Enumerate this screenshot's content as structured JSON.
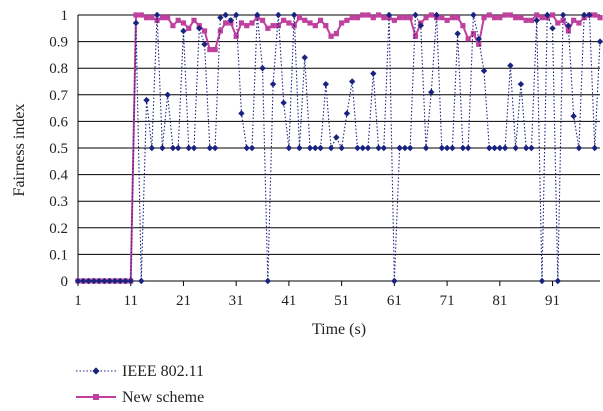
{
  "chart_data": {
    "type": "line",
    "xlabel": "Time (s)",
    "ylabel": "Fairness index",
    "xlim": [
      1,
      100
    ],
    "ylim": [
      0,
      1
    ],
    "grid": true,
    "legend_position": "bottom-left",
    "x_ticks": [
      1,
      11,
      21,
      31,
      41,
      51,
      61,
      71,
      81,
      91
    ],
    "y_ticks": [
      0,
      0.1,
      0.2,
      0.3,
      0.4,
      0.5,
      0.6,
      0.7,
      0.8,
      0.9,
      1
    ],
    "series": [
      {
        "name": "IEEE 802.11",
        "color": "#1a237e",
        "line_style": "dotted",
        "marker": "diamond",
        "x": [
          1,
          2,
          3,
          4,
          5,
          6,
          7,
          8,
          9,
          10,
          11,
          12,
          13,
          14,
          15,
          16,
          17,
          18,
          19,
          20,
          21,
          22,
          23,
          24,
          25,
          26,
          27,
          28,
          29,
          30,
          31,
          32,
          33,
          34,
          35,
          36,
          37,
          38,
          39,
          40,
          41,
          42,
          43,
          44,
          45,
          46,
          47,
          48,
          49,
          50,
          51,
          52,
          53,
          54,
          55,
          56,
          57,
          58,
          59,
          60,
          61,
          62,
          63,
          64,
          65,
          66,
          67,
          68,
          69,
          70,
          71,
          72,
          73,
          74,
          75,
          76,
          77,
          78,
          79,
          80,
          81,
          82,
          83,
          84,
          85,
          86,
          87,
          88,
          89,
          90,
          91,
          92,
          93,
          94,
          95,
          96,
          97,
          98,
          99,
          100
        ],
        "y": [
          0,
          0,
          0,
          0,
          0,
          0,
          0,
          0,
          0,
          0,
          0,
          0.97,
          0,
          0.68,
          0.5,
          1,
          0.5,
          0.7,
          0.5,
          0.5,
          0.94,
          0.5,
          0.5,
          0.95,
          0.89,
          0.5,
          0.5,
          0.99,
          1,
          0.98,
          1,
          0.63,
          0.5,
          0.5,
          1,
          0.8,
          0,
          0.74,
          1,
          0.67,
          0.5,
          1,
          0.5,
          0.84,
          0.5,
          0.5,
          0.5,
          0.74,
          0.5,
          0.54,
          0.5,
          0.63,
          0.75,
          0.5,
          0.5,
          0.5,
          0.78,
          0.5,
          0.5,
          1,
          0,
          0.5,
          0.5,
          0.5,
          1,
          0.96,
          0.5,
          0.71,
          1,
          0.5,
          0.5,
          0.5,
          0.93,
          0.5,
          0.5,
          1,
          0.91,
          0.79,
          0.5,
          0.5,
          0.5,
          0.5,
          0.81,
          0.5,
          0.74,
          0.5,
          0.5,
          0.98,
          0,
          1,
          0.95,
          0,
          1,
          0.96,
          0.62,
          0.5,
          1,
          1,
          0.5,
          0.9
        ]
      },
      {
        "name": "New scheme",
        "color": "#c040a0",
        "line_style": "solid",
        "marker": "square",
        "x": [
          1,
          2,
          3,
          4,
          5,
          6,
          7,
          8,
          9,
          10,
          11,
          12,
          13,
          14,
          15,
          16,
          17,
          18,
          19,
          20,
          21,
          22,
          23,
          24,
          25,
          26,
          27,
          28,
          29,
          30,
          31,
          32,
          33,
          34,
          35,
          36,
          37,
          38,
          39,
          40,
          41,
          42,
          43,
          44,
          45,
          46,
          47,
          48,
          49,
          50,
          51,
          52,
          53,
          54,
          55,
          56,
          57,
          58,
          59,
          60,
          61,
          62,
          63,
          64,
          65,
          66,
          67,
          68,
          69,
          70,
          71,
          72,
          73,
          74,
          75,
          76,
          77,
          78,
          79,
          80,
          81,
          82,
          83,
          84,
          85,
          86,
          87,
          88,
          89,
          90,
          91,
          92,
          93,
          94,
          95,
          96,
          97,
          98,
          99,
          100
        ],
        "y": [
          0,
          0,
          0,
          0,
          0,
          0,
          0,
          0,
          0,
          0,
          0,
          1,
          1,
          0.99,
          0.99,
          0.98,
          0.99,
          0.99,
          0.96,
          0.98,
          0.97,
          0.95,
          0.98,
          0.96,
          0.94,
          0.87,
          0.87,
          0.94,
          0.97,
          0.97,
          0.92,
          0.97,
          0.96,
          0.97,
          0.99,
          0.98,
          0.95,
          0.96,
          0.96,
          0.98,
          0.97,
          0.96,
          0.99,
          0.98,
          0.97,
          0.96,
          0.98,
          0.96,
          0.92,
          0.93,
          0.97,
          0.98,
          0.99,
          0.99,
          1,
          1,
          0.99,
          1,
          0.99,
          0.99,
          0.98,
          0.99,
          0.99,
          0.99,
          0.92,
          0.97,
          0.99,
          1,
          0.99,
          0.99,
          0.98,
          0.99,
          0.99,
          0.96,
          0.91,
          0.93,
          0.89,
          0.99,
          1,
          0.99,
          0.99,
          1,
          1,
          0.99,
          0.99,
          0.98,
          0.98,
          1,
          0.99,
          0.99,
          1,
          0.97,
          0.98,
          0.94,
          0.98,
          0.97,
          0.99,
          1,
          1,
          0.99
        ]
      }
    ]
  }
}
